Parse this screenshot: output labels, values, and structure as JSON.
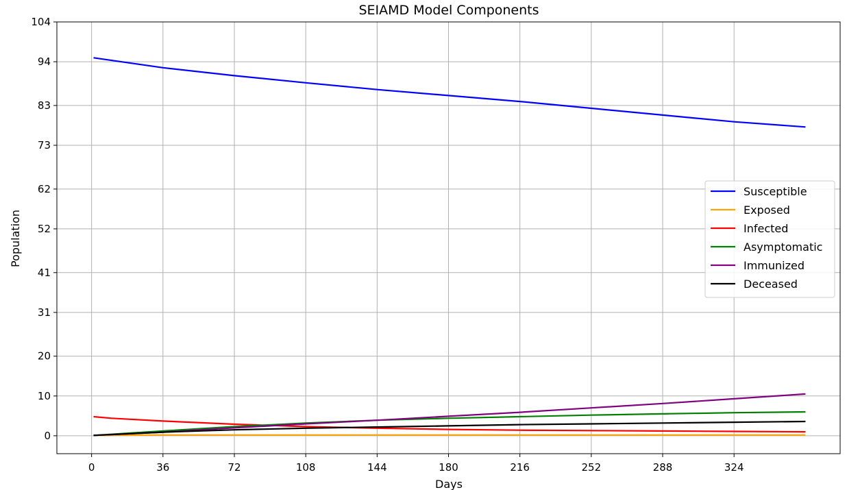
{
  "chart_data": {
    "type": "line",
    "title": "SEIAMD Model Components",
    "xlabel": "Days",
    "ylabel": "Population",
    "xlim": [
      -17.5,
      377.5
    ],
    "ylim": [
      -4.5,
      104
    ],
    "xticks": [
      0,
      36,
      72,
      108,
      144,
      180,
      216,
      252,
      288,
      324
    ],
    "yticks": [
      0,
      10,
      20,
      31,
      41,
      52,
      62,
      73,
      83,
      94,
      104
    ],
    "grid": true,
    "legend_position": "center-right",
    "series": [
      {
        "name": "Susceptible",
        "color": "#0000ff",
        "x": [
          1,
          36,
          72,
          108,
          144,
          180,
          216,
          252,
          288,
          324,
          360
        ],
        "y": [
          95,
          92.5,
          90.5,
          88.7,
          87,
          85.5,
          84,
          82.3,
          80.6,
          78.9,
          77.6
        ]
      },
      {
        "name": "Exposed",
        "color": "#ffa500",
        "x": [
          1,
          36,
          72,
          108,
          144,
          180,
          216,
          252,
          288,
          324,
          360
        ],
        "y": [
          0.1,
          0.2,
          0.2,
          0.2,
          0.2,
          0.2,
          0.2,
          0.2,
          0.2,
          0.2,
          0.2
        ]
      },
      {
        "name": "Infected",
        "color": "#ff0000",
        "x": [
          1,
          10,
          36,
          72,
          108,
          144,
          180,
          216,
          252,
          288,
          324,
          360
        ],
        "y": [
          4.8,
          4.4,
          3.7,
          2.9,
          2.3,
          1.9,
          1.6,
          1.4,
          1.3,
          1.2,
          1.1,
          1.0
        ]
      },
      {
        "name": "Asymptomatic",
        "color": "#008000",
        "x": [
          1,
          36,
          72,
          108,
          144,
          180,
          216,
          252,
          288,
          324,
          360
        ],
        "y": [
          0.1,
          1.2,
          2.3,
          3.2,
          3.9,
          4.4,
          4.8,
          5.2,
          5.5,
          5.8,
          6.0
        ]
      },
      {
        "name": "Immunized",
        "color": "#800080",
        "x": [
          1,
          36,
          72,
          108,
          144,
          180,
          216,
          252,
          288,
          324,
          360
        ],
        "y": [
          0.1,
          0.9,
          2.0,
          3.0,
          3.9,
          4.9,
          5.9,
          7.0,
          8.1,
          9.3,
          10.5
        ]
      },
      {
        "name": "Deceased",
        "color": "#000000",
        "x": [
          1,
          36,
          72,
          108,
          144,
          180,
          216,
          252,
          288,
          324,
          360
        ],
        "y": [
          0.1,
          0.9,
          1.5,
          1.9,
          2.2,
          2.5,
          2.8,
          3.0,
          3.2,
          3.4,
          3.6
        ]
      }
    ]
  }
}
